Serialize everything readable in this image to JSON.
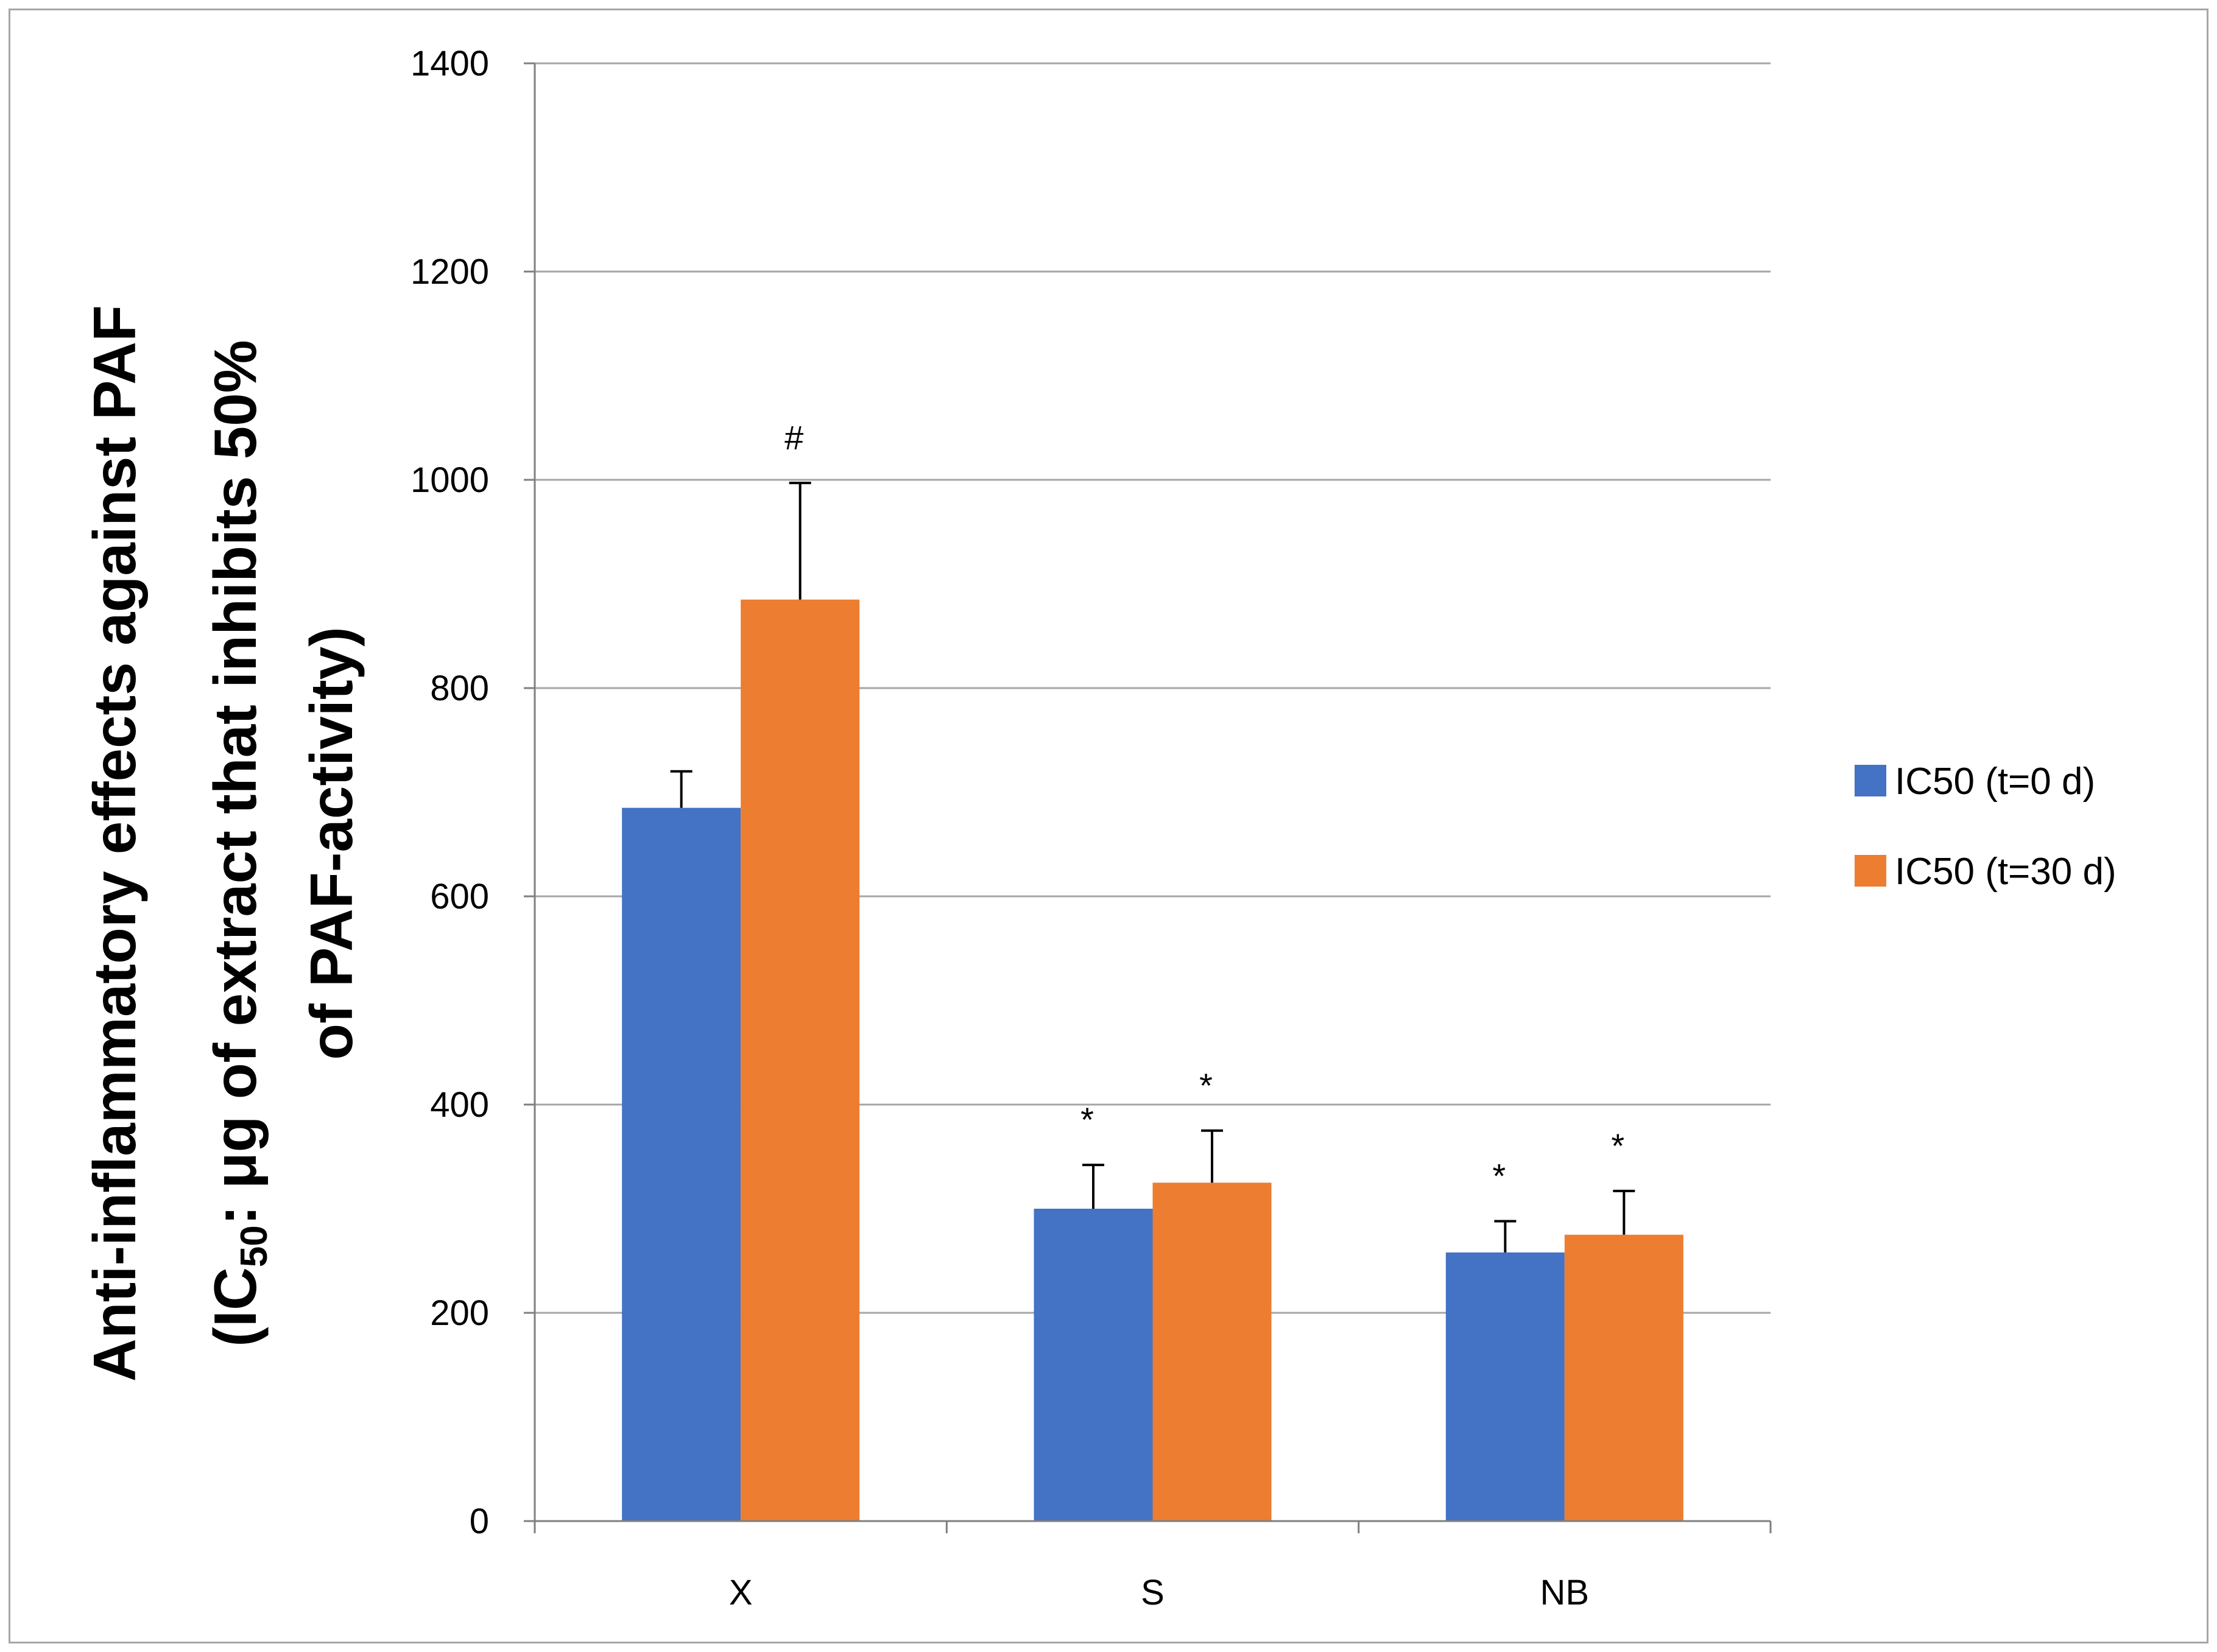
{
  "chart_data": {
    "type": "bar",
    "categories": [
      "X",
      "S",
      "NB"
    ],
    "series": [
      {
        "name": "IC50 (t=0 d)",
        "color": "#4472C4",
        "values": [
          685,
          300,
          258
        ],
        "errors": [
          35,
          42,
          30
        ],
        "annotations": [
          "",
          "*",
          "*"
        ]
      },
      {
        "name": "IC50 (t=30 d)",
        "color": "#ED7D31",
        "values": [
          885,
          325,
          275
        ],
        "errors": [
          112,
          50,
          42
        ],
        "annotations": [
          "#",
          "*",
          "*"
        ]
      }
    ],
    "ylim": [
      0,
      1400
    ],
    "yticks": [
      "0",
      "200",
      "400",
      "600",
      "800",
      "1000",
      "1200",
      "1400"
    ],
    "ylabel_line1": "Anti-inflammatory effects against PAF",
    "ylabel_line2_pre": "(IC",
    "ylabel_line2_sub": "50",
    "ylabel_line2_post": ": μg of extract that inhibits 50%",
    "ylabel_line3": "of PAF-activity)",
    "title": "",
    "xlabel": "",
    "grid": true,
    "legend_position": "right"
  }
}
